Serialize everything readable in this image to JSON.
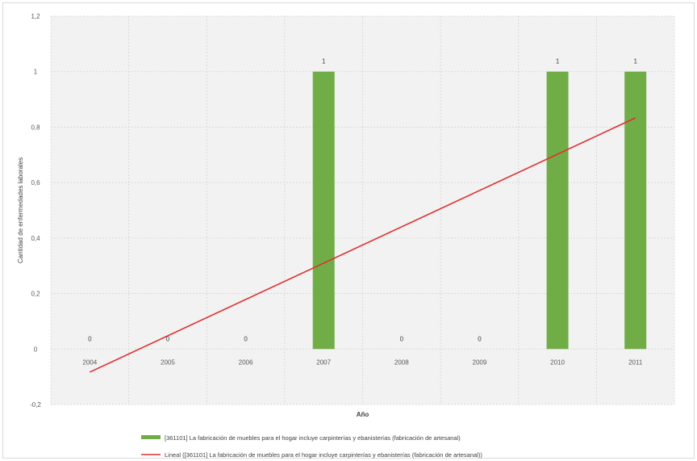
{
  "chart_data": {
    "type": "bar",
    "categories": [
      "2004",
      "2005",
      "2006",
      "2007",
      "2008",
      "2009",
      "2010",
      "2011"
    ],
    "series": [
      {
        "name": "[361101] La fabricación de muebles para el hogar incluye carpinterías y ebanisterías (fabricación de artesanal)",
        "values": [
          0,
          0,
          0,
          1,
          0,
          0,
          1,
          1
        ],
        "color": "#70ad47"
      }
    ],
    "trendline": {
      "name": "Lineal ([361101] La fabricación de muebles para el hogar incluye carpinterías y ebanisterías (fabricación de artesanal))",
      "type": "linear",
      "color": "#e03030"
    },
    "data_labels": [
      "0",
      "0",
      "0",
      "1",
      "0",
      "0",
      "1",
      "1"
    ],
    "xlabel": "Año",
    "ylabel": "Cantidad de enfermedades laborales",
    "ylim": [
      -0.2,
      1.2
    ],
    "yticks": [
      -0.2,
      0,
      0.2,
      0.4,
      0.6,
      0.8,
      1,
      1.2
    ],
    "ytick_labels": [
      "-0,2",
      "0",
      "0,2",
      "0,4",
      "0,6",
      "0,8",
      "1",
      "1,2"
    ],
    "grid": true,
    "legend_position": "bottom"
  }
}
